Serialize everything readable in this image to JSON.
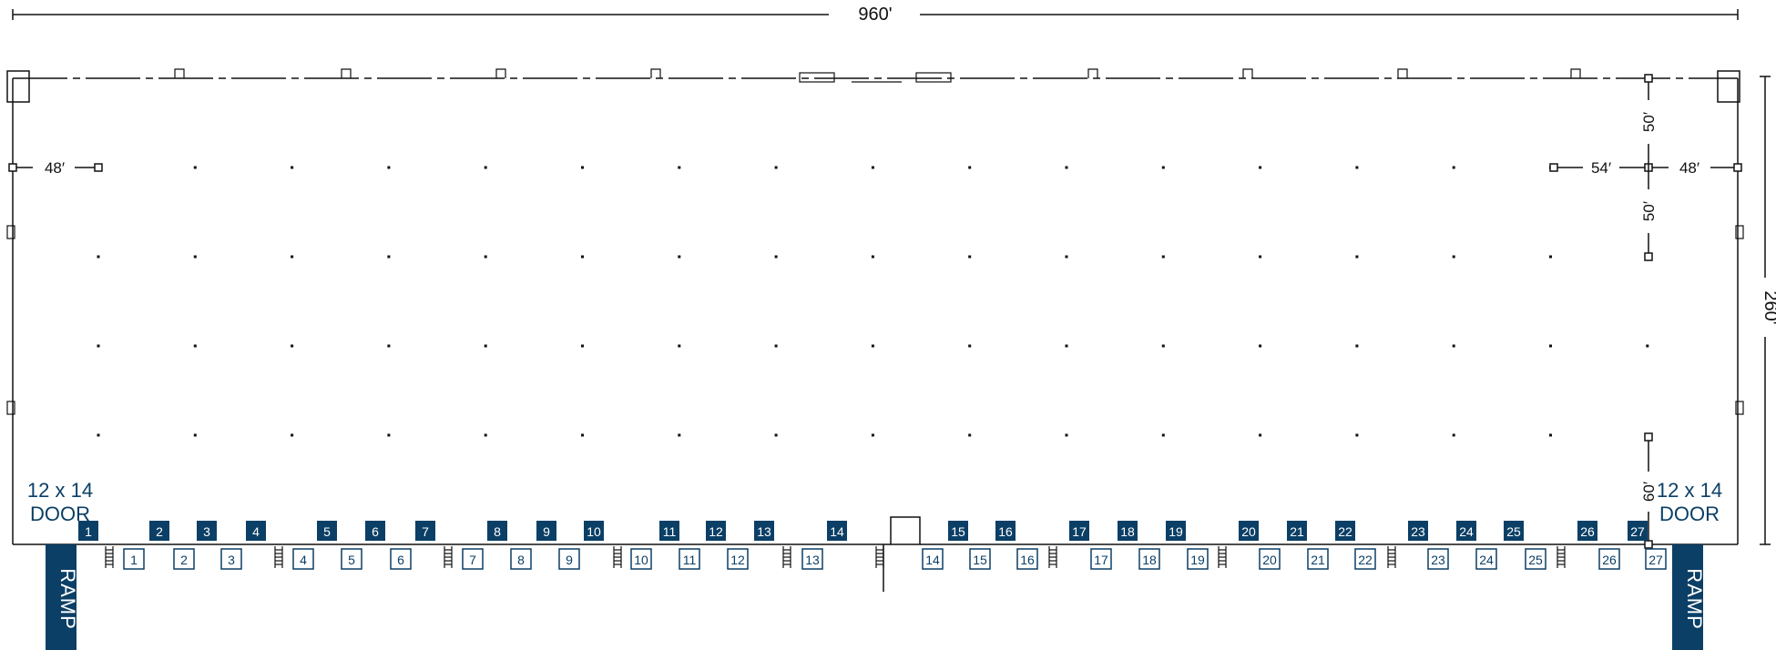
{
  "plan": {
    "overall_width": "960'",
    "overall_depth": "260'",
    "left_bay": "48′",
    "right_bay_a": "54′",
    "right_bay_b": "48′",
    "right_span_a": "50′",
    "right_span_b": "50′",
    "right_lower_span": "60′",
    "left_door_label_1": "12 x 14",
    "left_door_label_2": "DOOR",
    "right_door_label_1": "12 x 14",
    "right_door_label_2": "DOOR",
    "ramp_left": "RAMP",
    "ramp_right": "RAMP"
  },
  "dock_doors": [
    "1",
    "2",
    "3",
    "4",
    "5",
    "6",
    "7",
    "8",
    "9",
    "10",
    "11",
    "12",
    "13",
    "14",
    "15",
    "16",
    "17",
    "18",
    "19",
    "20",
    "21",
    "22",
    "23",
    "24",
    "25",
    "26",
    "27"
  ],
  "dock_positions": [
    "1",
    "2",
    "3",
    "4",
    "5",
    "6",
    "7",
    "8",
    "9",
    "10",
    "11",
    "12",
    "13",
    "14",
    "15",
    "16",
    "17",
    "18",
    "19",
    "20",
    "21",
    "22",
    "23",
    "24",
    "25",
    "26",
    "27"
  ],
  "colors": {
    "accent": "#0b3f66",
    "line": "#111111"
  }
}
